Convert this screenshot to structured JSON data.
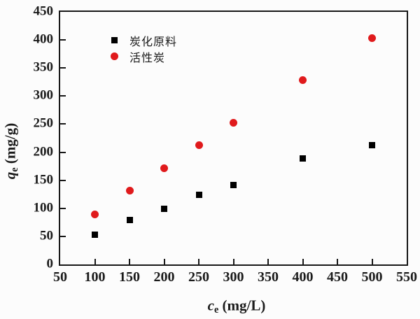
{
  "colors": {
    "axis": "#181818",
    "series1": "#000000",
    "series2": "#e01a1c",
    "background": "#fcfcfc"
  },
  "legend": {
    "items": [
      {
        "label": "炭化原料",
        "marker": "square",
        "color": "#000000"
      },
      {
        "label": "活性炭",
        "marker": "circle",
        "color": "#e01a1c"
      }
    ]
  },
  "axes": {
    "x": {
      "symbol": "c",
      "sub": "e",
      "unit": " (mg/L)"
    },
    "y": {
      "symbol": "q",
      "sub": "e",
      "unit": " (mg/g)"
    }
  },
  "chart_data": {
    "type": "scatter",
    "x": [
      100,
      150,
      200,
      250,
      300,
      400,
      500
    ],
    "series": [
      {
        "name": "炭化原料",
        "marker": "square",
        "color": "#000000",
        "values": [
          53,
          79,
          99,
          124,
          142,
          189,
          212
        ]
      },
      {
        "name": "活性炭",
        "marker": "circle",
        "color": "#e01a1c",
        "values": [
          89,
          132,
          172,
          212,
          252,
          328,
          403
        ]
      }
    ],
    "title": "",
    "xlabel": "ce (mg/L)",
    "ylabel": "qe (mg/g)",
    "xlim": [
      50,
      550
    ],
    "ylim": [
      0,
      450
    ],
    "xticks": [
      50,
      100,
      150,
      200,
      250,
      300,
      350,
      400,
      450,
      500,
      550
    ],
    "yticks": [
      0,
      50,
      100,
      150,
      200,
      250,
      300,
      350,
      400,
      450
    ],
    "grid": false,
    "legend_position": "upper-left-inside"
  }
}
